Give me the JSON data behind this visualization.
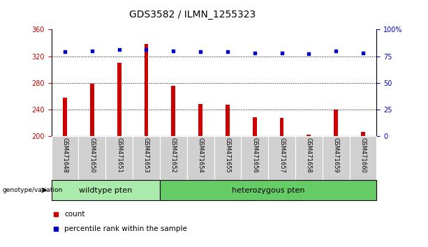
{
  "title": "GDS3582 / ILMN_1255323",
  "categories": [
    "GSM471648",
    "GSM471650",
    "GSM471651",
    "GSM471653",
    "GSM471652",
    "GSM471654",
    "GSM471655",
    "GSM471656",
    "GSM471657",
    "GSM471658",
    "GSM471659",
    "GSM471660"
  ],
  "bar_values": [
    258,
    278,
    310,
    338,
    275,
    248,
    247,
    228,
    227,
    202,
    240,
    206
  ],
  "scatter_values": [
    79,
    80,
    81,
    81,
    80,
    79,
    79,
    78,
    78,
    77,
    80,
    78
  ],
  "bar_color": "#cc0000",
  "scatter_color": "#0000cc",
  "ylim_left": [
    200,
    360
  ],
  "ylim_right": [
    0,
    100
  ],
  "yticks_left": [
    200,
    240,
    280,
    320,
    360
  ],
  "yticks_right": [
    0,
    25,
    50,
    75,
    100
  ],
  "ytick_labels_right": [
    "0",
    "25",
    "50",
    "75",
    "100%"
  ],
  "grid_values": [
    240,
    280,
    320
  ],
  "wt_count": 4,
  "het_count": 8,
  "wildtype_label": "wildtype pten",
  "hetero_label": "heterozygous pten",
  "genotype_label": "genotype/variation",
  "legend_count": "count",
  "legend_percentile": "percentile rank within the sample",
  "bar_width": 0.15,
  "tick_bg_color": "#d0d0d0",
  "wildtype_bg_color": "#aaeaaa",
  "hetero_bg_color": "#66cc66",
  "xlabel_color": "#cc0000",
  "ylabel_right_color": "#0000cc",
  "title_fontsize": 10,
  "axis_fontsize": 7,
  "label_fontsize": 8
}
